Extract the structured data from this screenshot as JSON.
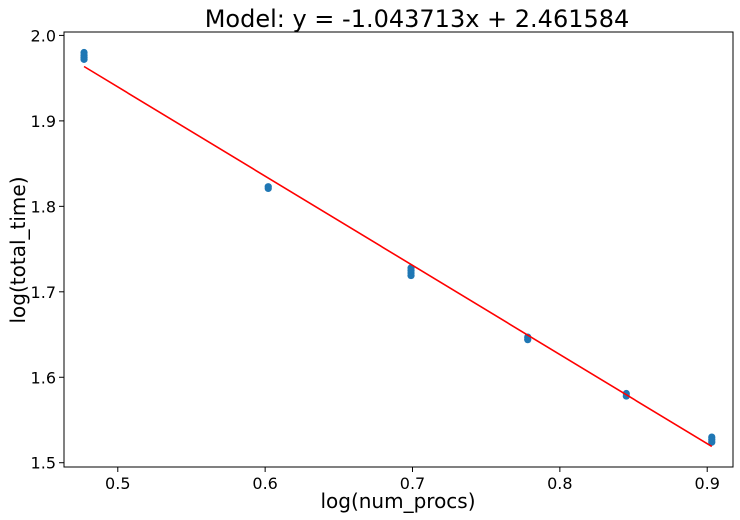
{
  "chart_data": {
    "type": "scatter",
    "title": "Model: y = -1.043713x + 2.461584",
    "xlabel": "log(num_procs)",
    "ylabel": "log(total_time)",
    "xlim": [
      0.4635,
      0.9175
    ],
    "ylim": [
      1.495,
      2.004
    ],
    "xticks": [
      0.5,
      0.6,
      0.7,
      0.8,
      0.9
    ],
    "xtick_labels": [
      "0.5",
      "0.6",
      "0.7",
      "0.8",
      "0.9"
    ],
    "yticks": [
      1.5,
      1.6,
      1.7,
      1.8,
      1.9,
      2.0
    ],
    "ytick_labels": [
      "1.5",
      "1.6",
      "1.7",
      "1.8",
      "1.9",
      "2.0"
    ],
    "grid": false,
    "series": [
      {
        "kind": "points",
        "color": "#1f77b4",
        "points": [
          {
            "x": 0.4771,
            "y": 1.98
          },
          {
            "x": 0.4771,
            "y": 1.977
          },
          {
            "x": 0.4771,
            "y": 1.974
          },
          {
            "x": 0.4771,
            "y": 1.972
          },
          {
            "x": 0.6021,
            "y": 1.823
          },
          {
            "x": 0.6021,
            "y": 1.821
          },
          {
            "x": 0.699,
            "y": 1.728
          },
          {
            "x": 0.699,
            "y": 1.725
          },
          {
            "x": 0.699,
            "y": 1.722
          },
          {
            "x": 0.699,
            "y": 1.719
          },
          {
            "x": 0.7782,
            "y": 1.647
          },
          {
            "x": 0.7782,
            "y": 1.644
          },
          {
            "x": 0.8451,
            "y": 1.581
          },
          {
            "x": 0.8451,
            "y": 1.578
          },
          {
            "x": 0.9031,
            "y": 1.53
          },
          {
            "x": 0.9031,
            "y": 1.527
          },
          {
            "x": 0.9031,
            "y": 1.524
          }
        ]
      },
      {
        "kind": "fit-line",
        "color": "#ff0000",
        "slope": -1.043713,
        "intercept": 2.461584,
        "x_range": [
          0.4771,
          0.9031
        ]
      }
    ]
  }
}
